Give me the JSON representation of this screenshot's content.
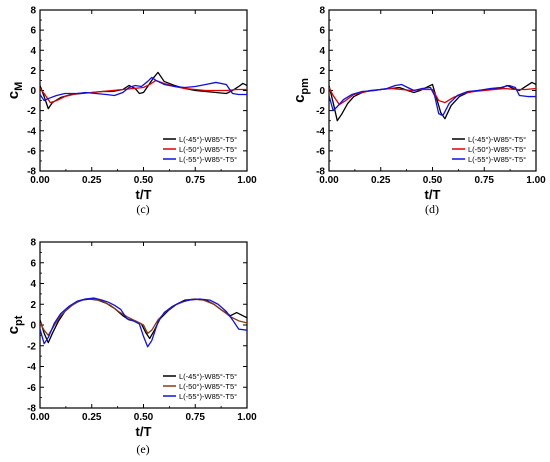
{
  "chart_data": [
    {
      "type": "line",
      "panel_label": "(c)",
      "ylabel": "c",
      "ylabel_sub": "M",
      "xlabel": "t/T",
      "xlim": [
        0,
        1
      ],
      "ylim": [
        -8,
        8
      ],
      "xticks": [
        "0.00",
        "0.25",
        "0.50",
        "0.75",
        "1.00"
      ],
      "yticks": [
        "8",
        "6",
        "4",
        "2",
        "0",
        "-2",
        "-4",
        "-6",
        "-8"
      ],
      "legend_position": "bottom-right",
      "series": [
        {
          "name": "L(-45°)-W85°-T5°",
          "color": "#000000",
          "points": [
            [
              0,
              0.5
            ],
            [
              0.02,
              -0.6
            ],
            [
              0.04,
              -1.8
            ],
            [
              0.06,
              -1.2
            ],
            [
              0.1,
              -0.7
            ],
            [
              0.15,
              -0.4
            ],
            [
              0.2,
              -0.3
            ],
            [
              0.25,
              -0.2
            ],
            [
              0.3,
              -0.1
            ],
            [
              0.35,
              -0.1
            ],
            [
              0.4,
              0.1
            ],
            [
              0.43,
              0.5
            ],
            [
              0.46,
              0.2
            ],
            [
              0.48,
              -0.3
            ],
            [
              0.5,
              -0.2
            ],
            [
              0.52,
              0.4
            ],
            [
              0.55,
              1.3
            ],
            [
              0.57,
              1.8
            ],
            [
              0.6,
              0.9
            ],
            [
              0.65,
              0.5
            ],
            [
              0.7,
              0.2
            ],
            [
              0.75,
              0.0
            ],
            [
              0.8,
              -0.1
            ],
            [
              0.85,
              -0.2
            ],
            [
              0.9,
              -0.3
            ],
            [
              0.93,
              0.0
            ],
            [
              0.96,
              0.4
            ],
            [
              0.98,
              0.7
            ],
            [
              1,
              0.5
            ]
          ]
        },
        {
          "name": "L(-50°)-W85°-T5°",
          "color": "#e00000",
          "points": [
            [
              0,
              0.2
            ],
            [
              0.02,
              -0.3
            ],
            [
              0.05,
              -1.2
            ],
            [
              0.08,
              -1.0
            ],
            [
              0.12,
              -0.6
            ],
            [
              0.18,
              -0.3
            ],
            [
              0.25,
              -0.2
            ],
            [
              0.3,
              -0.1
            ],
            [
              0.35,
              0.0
            ],
            [
              0.4,
              0.1
            ],
            [
              0.45,
              0.2
            ],
            [
              0.5,
              0.3
            ],
            [
              0.53,
              0.6
            ],
            [
              0.56,
              1.0
            ],
            [
              0.6,
              0.7
            ],
            [
              0.65,
              0.4
            ],
            [
              0.7,
              0.2
            ],
            [
              0.75,
              0.1
            ],
            [
              0.8,
              0.0
            ],
            [
              0.85,
              0.0
            ],
            [
              0.9,
              0.0
            ],
            [
              0.95,
              0.1
            ],
            [
              1,
              0.1
            ]
          ]
        },
        {
          "name": "L(-55°)-W85°-T5°",
          "color": "#1010e0",
          "points": [
            [
              0,
              -0.4
            ],
            [
              0.02,
              -1.0
            ],
            [
              0.04,
              -0.8
            ],
            [
              0.08,
              -0.5
            ],
            [
              0.12,
              -0.3
            ],
            [
              0.18,
              -0.3
            ],
            [
              0.22,
              -0.2
            ],
            [
              0.27,
              -0.3
            ],
            [
              0.32,
              -0.4
            ],
            [
              0.36,
              -0.5
            ],
            [
              0.4,
              -0.2
            ],
            [
              0.43,
              0.3
            ],
            [
              0.46,
              0.5
            ],
            [
              0.49,
              0.4
            ],
            [
              0.52,
              0.9
            ],
            [
              0.54,
              1.3
            ],
            [
              0.56,
              1.0
            ],
            [
              0.6,
              0.6
            ],
            [
              0.65,
              0.4
            ],
            [
              0.7,
              0.3
            ],
            [
              0.75,
              0.4
            ],
            [
              0.8,
              0.6
            ],
            [
              0.85,
              0.8
            ],
            [
              0.9,
              0.6
            ],
            [
              0.93,
              -0.3
            ],
            [
              0.96,
              -0.4
            ],
            [
              1,
              -0.4
            ]
          ]
        }
      ]
    },
    {
      "type": "line",
      "panel_label": "(d)",
      "ylabel": "c",
      "ylabel_sub": "pm",
      "xlabel": "t/T",
      "xlim": [
        0,
        1
      ],
      "ylim": [
        -8,
        8
      ],
      "xticks": [
        "0.00",
        "0.25",
        "0.50",
        "0.75",
        "1.00"
      ],
      "yticks": [
        "8",
        "6",
        "4",
        "2",
        "0",
        "-2",
        "-4",
        "-6",
        "-8"
      ],
      "legend_position": "bottom-right",
      "series": [
        {
          "name": "L(-45°)-W85°-T5°",
          "color": "#000000",
          "points": [
            [
              0,
              0.5
            ],
            [
              0.02,
              -1.2
            ],
            [
              0.04,
              -3.0
            ],
            [
              0.06,
              -2.4
            ],
            [
              0.09,
              -1.3
            ],
            [
              0.12,
              -0.6
            ],
            [
              0.16,
              -0.2
            ],
            [
              0.2,
              0.0
            ],
            [
              0.25,
              0.1
            ],
            [
              0.3,
              0.2
            ],
            [
              0.34,
              0.3
            ],
            [
              0.38,
              0.0
            ],
            [
              0.41,
              -0.2
            ],
            [
              0.44,
              0.0
            ],
            [
              0.48,
              0.4
            ],
            [
              0.5,
              0.6
            ],
            [
              0.52,
              -0.8
            ],
            [
              0.54,
              -2.2
            ],
            [
              0.56,
              -2.8
            ],
            [
              0.59,
              -1.5
            ],
            [
              0.63,
              -0.6
            ],
            [
              0.67,
              -0.2
            ],
            [
              0.72,
              0.0
            ],
            [
              0.78,
              0.1
            ],
            [
              0.83,
              0.2
            ],
            [
              0.86,
              0.5
            ],
            [
              0.89,
              0.2
            ],
            [
              0.92,
              0.0
            ],
            [
              0.95,
              0.4
            ],
            [
              0.98,
              0.8
            ],
            [
              1,
              0.6
            ]
          ]
        },
        {
          "name": "L(-50°)-W85°-T5°",
          "color": "#e00000",
          "points": [
            [
              0,
              0.3
            ],
            [
              0.02,
              -0.5
            ],
            [
              0.05,
              -1.4
            ],
            [
              0.08,
              -1.0
            ],
            [
              0.12,
              -0.4
            ],
            [
              0.18,
              -0.1
            ],
            [
              0.25,
              0.1
            ],
            [
              0.3,
              0.2
            ],
            [
              0.35,
              0.1
            ],
            [
              0.4,
              0.0
            ],
            [
              0.45,
              0.1
            ],
            [
              0.5,
              0.1
            ],
            [
              0.53,
              -1.0
            ],
            [
              0.56,
              -1.2
            ],
            [
              0.6,
              -0.7
            ],
            [
              0.65,
              -0.3
            ],
            [
              0.7,
              -0.1
            ],
            [
              0.75,
              0.0
            ],
            [
              0.8,
              0.1
            ],
            [
              0.85,
              0.2
            ],
            [
              0.9,
              0.1
            ],
            [
              0.95,
              0.1
            ],
            [
              1,
              0.2
            ]
          ]
        },
        {
          "name": "L(-55°)-W85°-T5°",
          "color": "#1010e0",
          "points": [
            [
              0,
              -0.5
            ],
            [
              0.02,
              -2.0
            ],
            [
              0.04,
              -1.6
            ],
            [
              0.07,
              -0.9
            ],
            [
              0.11,
              -0.4
            ],
            [
              0.16,
              -0.1
            ],
            [
              0.22,
              0.0
            ],
            [
              0.28,
              0.2
            ],
            [
              0.32,
              0.5
            ],
            [
              0.35,
              0.6
            ],
            [
              0.38,
              0.3
            ],
            [
              0.41,
              0.0
            ],
            [
              0.45,
              0.2
            ],
            [
              0.49,
              0.3
            ],
            [
              0.51,
              -0.5
            ],
            [
              0.53,
              -2.3
            ],
            [
              0.55,
              -2.5
            ],
            [
              0.58,
              -1.3
            ],
            [
              0.62,
              -0.5
            ],
            [
              0.67,
              -0.1
            ],
            [
              0.72,
              0.0
            ],
            [
              0.78,
              0.2
            ],
            [
              0.83,
              0.3
            ],
            [
              0.87,
              0.5
            ],
            [
              0.9,
              0.3
            ],
            [
              0.92,
              -0.5
            ],
            [
              0.96,
              -0.6
            ],
            [
              1,
              -0.6
            ]
          ]
        }
      ]
    },
    {
      "type": "line",
      "panel_label": "(e)",
      "ylabel": "c",
      "ylabel_sub": "pt",
      "xlabel": "t/T",
      "xlim": [
        0,
        1
      ],
      "ylim": [
        -8,
        8
      ],
      "xticks": [
        "0.00",
        "0.25",
        "0.50",
        "0.75",
        "1.00"
      ],
      "yticks": [
        "8",
        "6",
        "4",
        "2",
        "0",
        "-2",
        "-4",
        "-6",
        "-8"
      ],
      "legend_position": "bottom-right",
      "series": [
        {
          "name": "L(-45°)-W85°-T5°",
          "color": "#000000",
          "points": [
            [
              0,
              0.5
            ],
            [
              0.02,
              -0.8
            ],
            [
              0.04,
              -1.7
            ],
            [
              0.06,
              -0.8
            ],
            [
              0.09,
              0.4
            ],
            [
              0.12,
              1.3
            ],
            [
              0.16,
              2.0
            ],
            [
              0.2,
              2.4
            ],
            [
              0.24,
              2.5
            ],
            [
              0.28,
              2.4
            ],
            [
              0.32,
              2.1
            ],
            [
              0.36,
              1.6
            ],
            [
              0.4,
              0.9
            ],
            [
              0.43,
              0.5
            ],
            [
              0.46,
              0.4
            ],
            [
              0.49,
              0.1
            ],
            [
              0.51,
              -0.7
            ],
            [
              0.53,
              -1.3
            ],
            [
              0.55,
              -0.6
            ],
            [
              0.58,
              0.6
            ],
            [
              0.62,
              1.4
            ],
            [
              0.66,
              2.0
            ],
            [
              0.7,
              2.4
            ],
            [
              0.75,
              2.5
            ],
            [
              0.8,
              2.4
            ],
            [
              0.84,
              2.0
            ],
            [
              0.88,
              1.4
            ],
            [
              0.92,
              0.9
            ],
            [
              0.95,
              1.2
            ],
            [
              0.98,
              0.9
            ],
            [
              1,
              0.7
            ]
          ]
        },
        {
          "name": "L(-50°)-W85°-T5°",
          "color": "#8b3a0f",
          "points": [
            [
              0,
              0.2
            ],
            [
              0.02,
              -0.5
            ],
            [
              0.04,
              -1.0
            ],
            [
              0.07,
              0.0
            ],
            [
              0.1,
              0.9
            ],
            [
              0.14,
              1.7
            ],
            [
              0.18,
              2.2
            ],
            [
              0.22,
              2.5
            ],
            [
              0.26,
              2.5
            ],
            [
              0.3,
              2.3
            ],
            [
              0.34,
              1.9
            ],
            [
              0.38,
              1.3
            ],
            [
              0.42,
              0.8
            ],
            [
              0.46,
              0.4
            ],
            [
              0.5,
              0.0
            ],
            [
              0.52,
              -0.8
            ],
            [
              0.54,
              -0.5
            ],
            [
              0.57,
              0.5
            ],
            [
              0.61,
              1.3
            ],
            [
              0.65,
              1.9
            ],
            [
              0.7,
              2.3
            ],
            [
              0.74,
              2.5
            ],
            [
              0.79,
              2.4
            ],
            [
              0.84,
              2.0
            ],
            [
              0.88,
              1.4
            ],
            [
              0.92,
              0.8
            ],
            [
              0.96,
              0.4
            ],
            [
              1,
              0.2
            ]
          ]
        },
        {
          "name": "L(-55°)-W85°-T5°",
          "color": "#1010e0",
          "points": [
            [
              0,
              -0.4
            ],
            [
              0.02,
              -1.8
            ],
            [
              0.04,
              -1.2
            ],
            [
              0.07,
              0.2
            ],
            [
              0.1,
              1.1
            ],
            [
              0.14,
              1.8
            ],
            [
              0.18,
              2.3
            ],
            [
              0.22,
              2.5
            ],
            [
              0.26,
              2.6
            ],
            [
              0.3,
              2.4
            ],
            [
              0.33,
              2.2
            ],
            [
              0.36,
              1.9
            ],
            [
              0.39,
              1.5
            ],
            [
              0.42,
              0.6
            ],
            [
              0.45,
              0.4
            ],
            [
              0.48,
              0.1
            ],
            [
              0.5,
              -1.1
            ],
            [
              0.52,
              -2.1
            ],
            [
              0.54,
              -1.5
            ],
            [
              0.57,
              0.3
            ],
            [
              0.6,
              1.2
            ],
            [
              0.64,
              1.8
            ],
            [
              0.68,
              2.2
            ],
            [
              0.72,
              2.4
            ],
            [
              0.77,
              2.5
            ],
            [
              0.82,
              2.4
            ],
            [
              0.86,
              2.0
            ],
            [
              0.9,
              1.3
            ],
            [
              0.93,
              0.5
            ],
            [
              0.96,
              -0.4
            ],
            [
              1,
              -0.5
            ]
          ]
        }
      ]
    }
  ]
}
